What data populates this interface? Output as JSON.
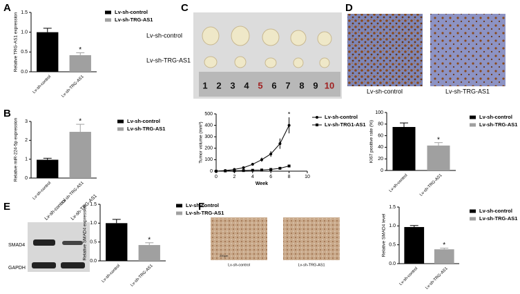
{
  "chart_data": [
    {
      "type": "bar",
      "panel": "A",
      "ylabel": "Relative TRG-AS1 expression",
      "categories": [
        "Lv-sh-control",
        "Lv-sh-TRG-AS1"
      ],
      "values": [
        1.0,
        0.42
      ],
      "errors": [
        0.1,
        0.06
      ],
      "colors": [
        "#000000",
        "#a0a0a0"
      ],
      "ylim": [
        0,
        1.5
      ],
      "yticks": [
        {
          "value": 0,
          "label": "0.0"
        },
        {
          "value": 0.5,
          "label": "0.5"
        },
        {
          "value": 1,
          "label": "1.0"
        },
        {
          "value": 1.5,
          "label": "1.5"
        }
      ],
      "annotation": "*"
    },
    {
      "type": "bar",
      "panel": "B",
      "ylabel": "Relative miR-224-5p expression",
      "categories": [
        "Lv-sh-control",
        "Lv-sh-TRG-AS1"
      ],
      "values": [
        0.97,
        2.45
      ],
      "errors": [
        0.08,
        0.4
      ],
      "colors": [
        "#000000",
        "#a0a0a0"
      ],
      "ylim": [
        0,
        3
      ],
      "yticks": [
        0,
        1,
        2,
        3
      ],
      "annotation": "*"
    },
    {
      "type": "line",
      "xlabel": "Week",
      "ylabel": "Tumor volume (mm³)",
      "x": [
        0,
        1,
        2,
        3,
        4,
        5,
        6,
        7,
        8
      ],
      "series": [
        {
          "name": "Lv-sh-control",
          "color": "#000000",
          "marker": "circle",
          "values": [
            0,
            5,
            15,
            30,
            60,
            100,
            150,
            240,
            400
          ],
          "errors": [
            0,
            3,
            5,
            8,
            12,
            18,
            25,
            45,
            70
          ]
        },
        {
          "name": "Lv-sh-TRG1-AS1",
          "color": "#000000",
          "marker": "square",
          "values": [
            0,
            2,
            3,
            5,
            8,
            10,
            15,
            25,
            45
          ],
          "errors": [
            0,
            1,
            1,
            2,
            3,
            3,
            4,
            6,
            10
          ]
        }
      ],
      "xlim": [
        0,
        10
      ],
      "xticks": [
        0,
        2,
        4,
        6,
        8,
        10
      ],
      "ylim": [
        0,
        500
      ],
      "yticks": [
        0,
        100,
        200,
        300,
        400,
        500
      ],
      "annotation": "*"
    },
    {
      "type": "bar",
      "ylabel": "KI67 positive rate (%)",
      "categories": [
        "Lv-sh-control",
        "Lv-sh-TRG-AS1"
      ],
      "values": [
        75,
        43
      ],
      "errors": [
        7,
        5
      ],
      "colors": [
        "#000000",
        "#a0a0a0"
      ],
      "ylim": [
        0,
        100
      ],
      "yticks": [
        0,
        20,
        40,
        60,
        80,
        100
      ],
      "annotation": "*"
    },
    {
      "type": "bar",
      "ylabel": "Relative SMAD4 expression",
      "categories": [
        "Lv-sh-control",
        "Lv-sh-TRG-AS1"
      ],
      "values": [
        1.0,
        0.42
      ],
      "errors": [
        0.1,
        0.06
      ],
      "colors": [
        "#000000",
        "#a0a0a0"
      ],
      "ylim": [
        0,
        1.5
      ],
      "yticks": [
        {
          "value": 0,
          "label": "0.0"
        },
        {
          "value": 0.5,
          "label": "0.5"
        },
        {
          "value": 1,
          "label": "1.0"
        },
        {
          "value": 1.5,
          "label": "1.5"
        }
      ],
      "annotation": "*"
    },
    {
      "type": "bar",
      "ylabel": "Relative SMAD4 level",
      "categories": [
        "Lv-sh-control",
        "Lv-sh-TRG-AS1"
      ],
      "values": [
        0.97,
        0.38
      ],
      "errors": [
        0.04,
        0.03
      ],
      "colors": [
        "#000000",
        "#a0a0a0"
      ],
      "ylim": [
        0,
        1.5
      ],
      "yticks": [
        {
          "value": 0,
          "label": "0.0"
        },
        {
          "value": 0.5,
          "label": "0.5"
        },
        {
          "value": 1,
          "label": "1.0"
        },
        {
          "value": 1.5,
          "label": "1.5"
        }
      ],
      "annotation": "*"
    }
  ],
  "panels": {
    "C": {
      "letter": "C",
      "rows": [
        "Lv-sh-control",
        "Lv-sh-TRG-AS1"
      ],
      "ruler": [
        "1",
        "2",
        "3",
        "4",
        "5",
        "6",
        "7",
        "8",
        "9",
        "10"
      ]
    },
    "D": {
      "letter": "D",
      "captions": [
        "Lv-sh-control",
        "Lv-sh-TRG-AS1"
      ]
    },
    "E": {
      "letter": "E",
      "lanes": [
        "Lv-sh-control",
        "Lv-sh-TRG-AS1"
      ],
      "bands": [
        "SMAD4",
        "GAPDH"
      ]
    },
    "F": {
      "letter": "F",
      "captions": [
        "Lv-sh-control",
        "Lv-sh-TRG-AS1"
      ],
      "scale": "200μm"
    }
  }
}
